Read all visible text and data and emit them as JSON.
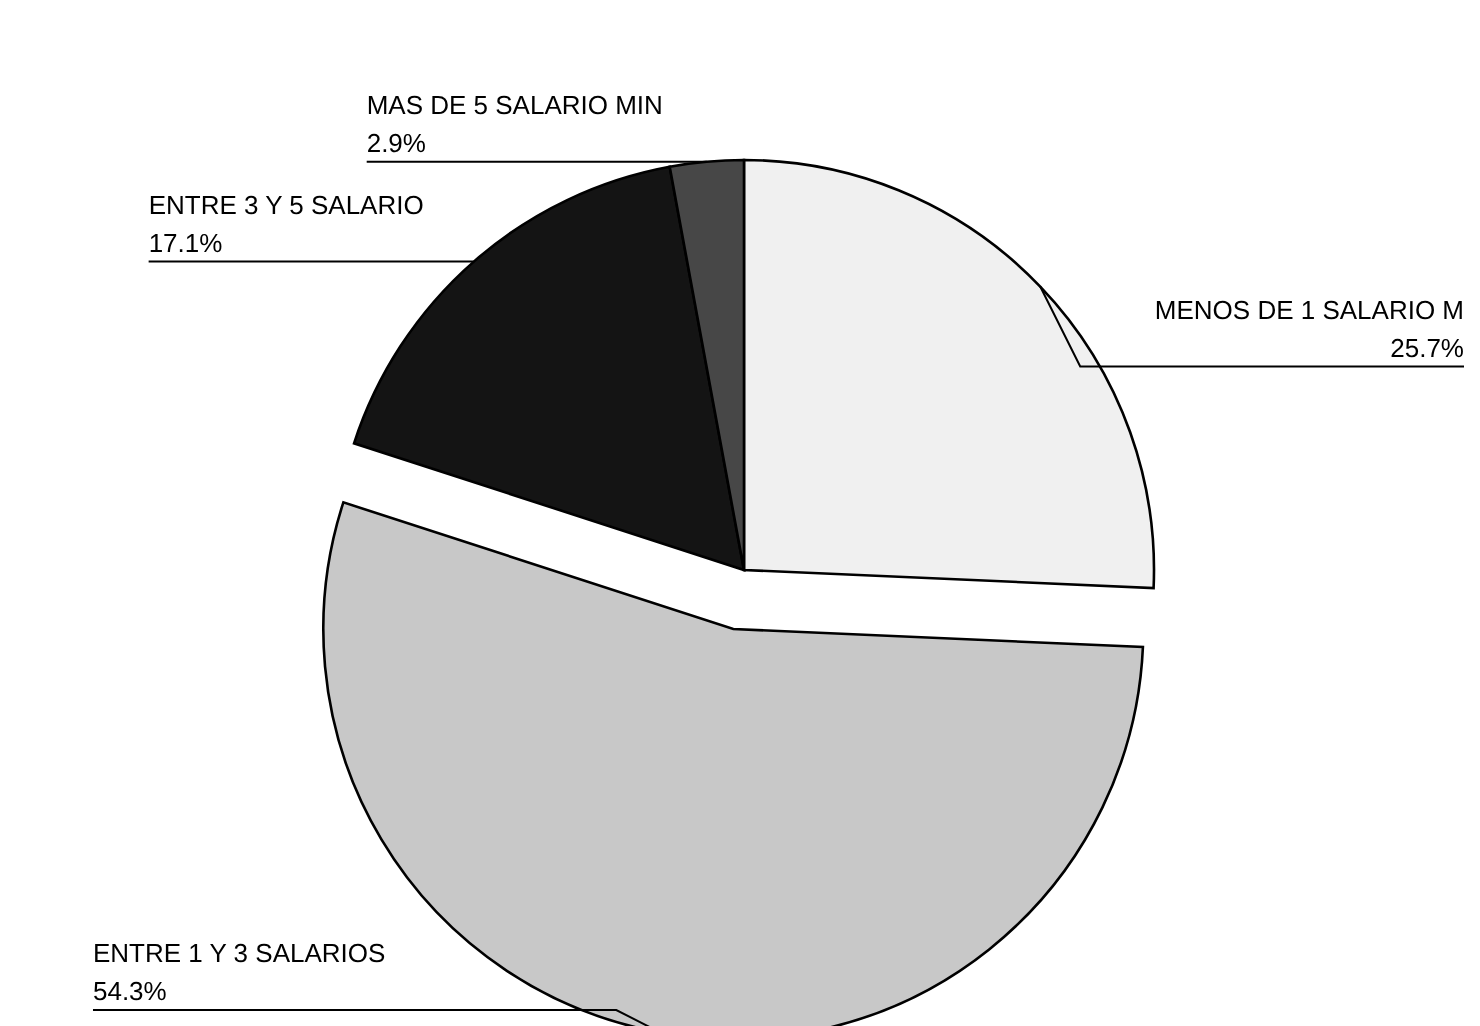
{
  "chart_data": {
    "type": "pie",
    "categories": [
      "MENOS DE 1 SALARIO M",
      "ENTRE 1 Y 3 SALARIOS",
      "ENTRE 3 Y 5 SALARIO",
      "MAS DE 5 SALARIO MIN"
    ],
    "values": [
      25.7,
      54.3,
      17.1,
      2.9
    ],
    "value_labels": [
      "25.7%",
      "54.3%",
      "17.1%",
      "2.9%"
    ],
    "colors": [
      "#f0f0f0",
      "#c8c8c8",
      "#141414",
      "#474747"
    ]
  }
}
